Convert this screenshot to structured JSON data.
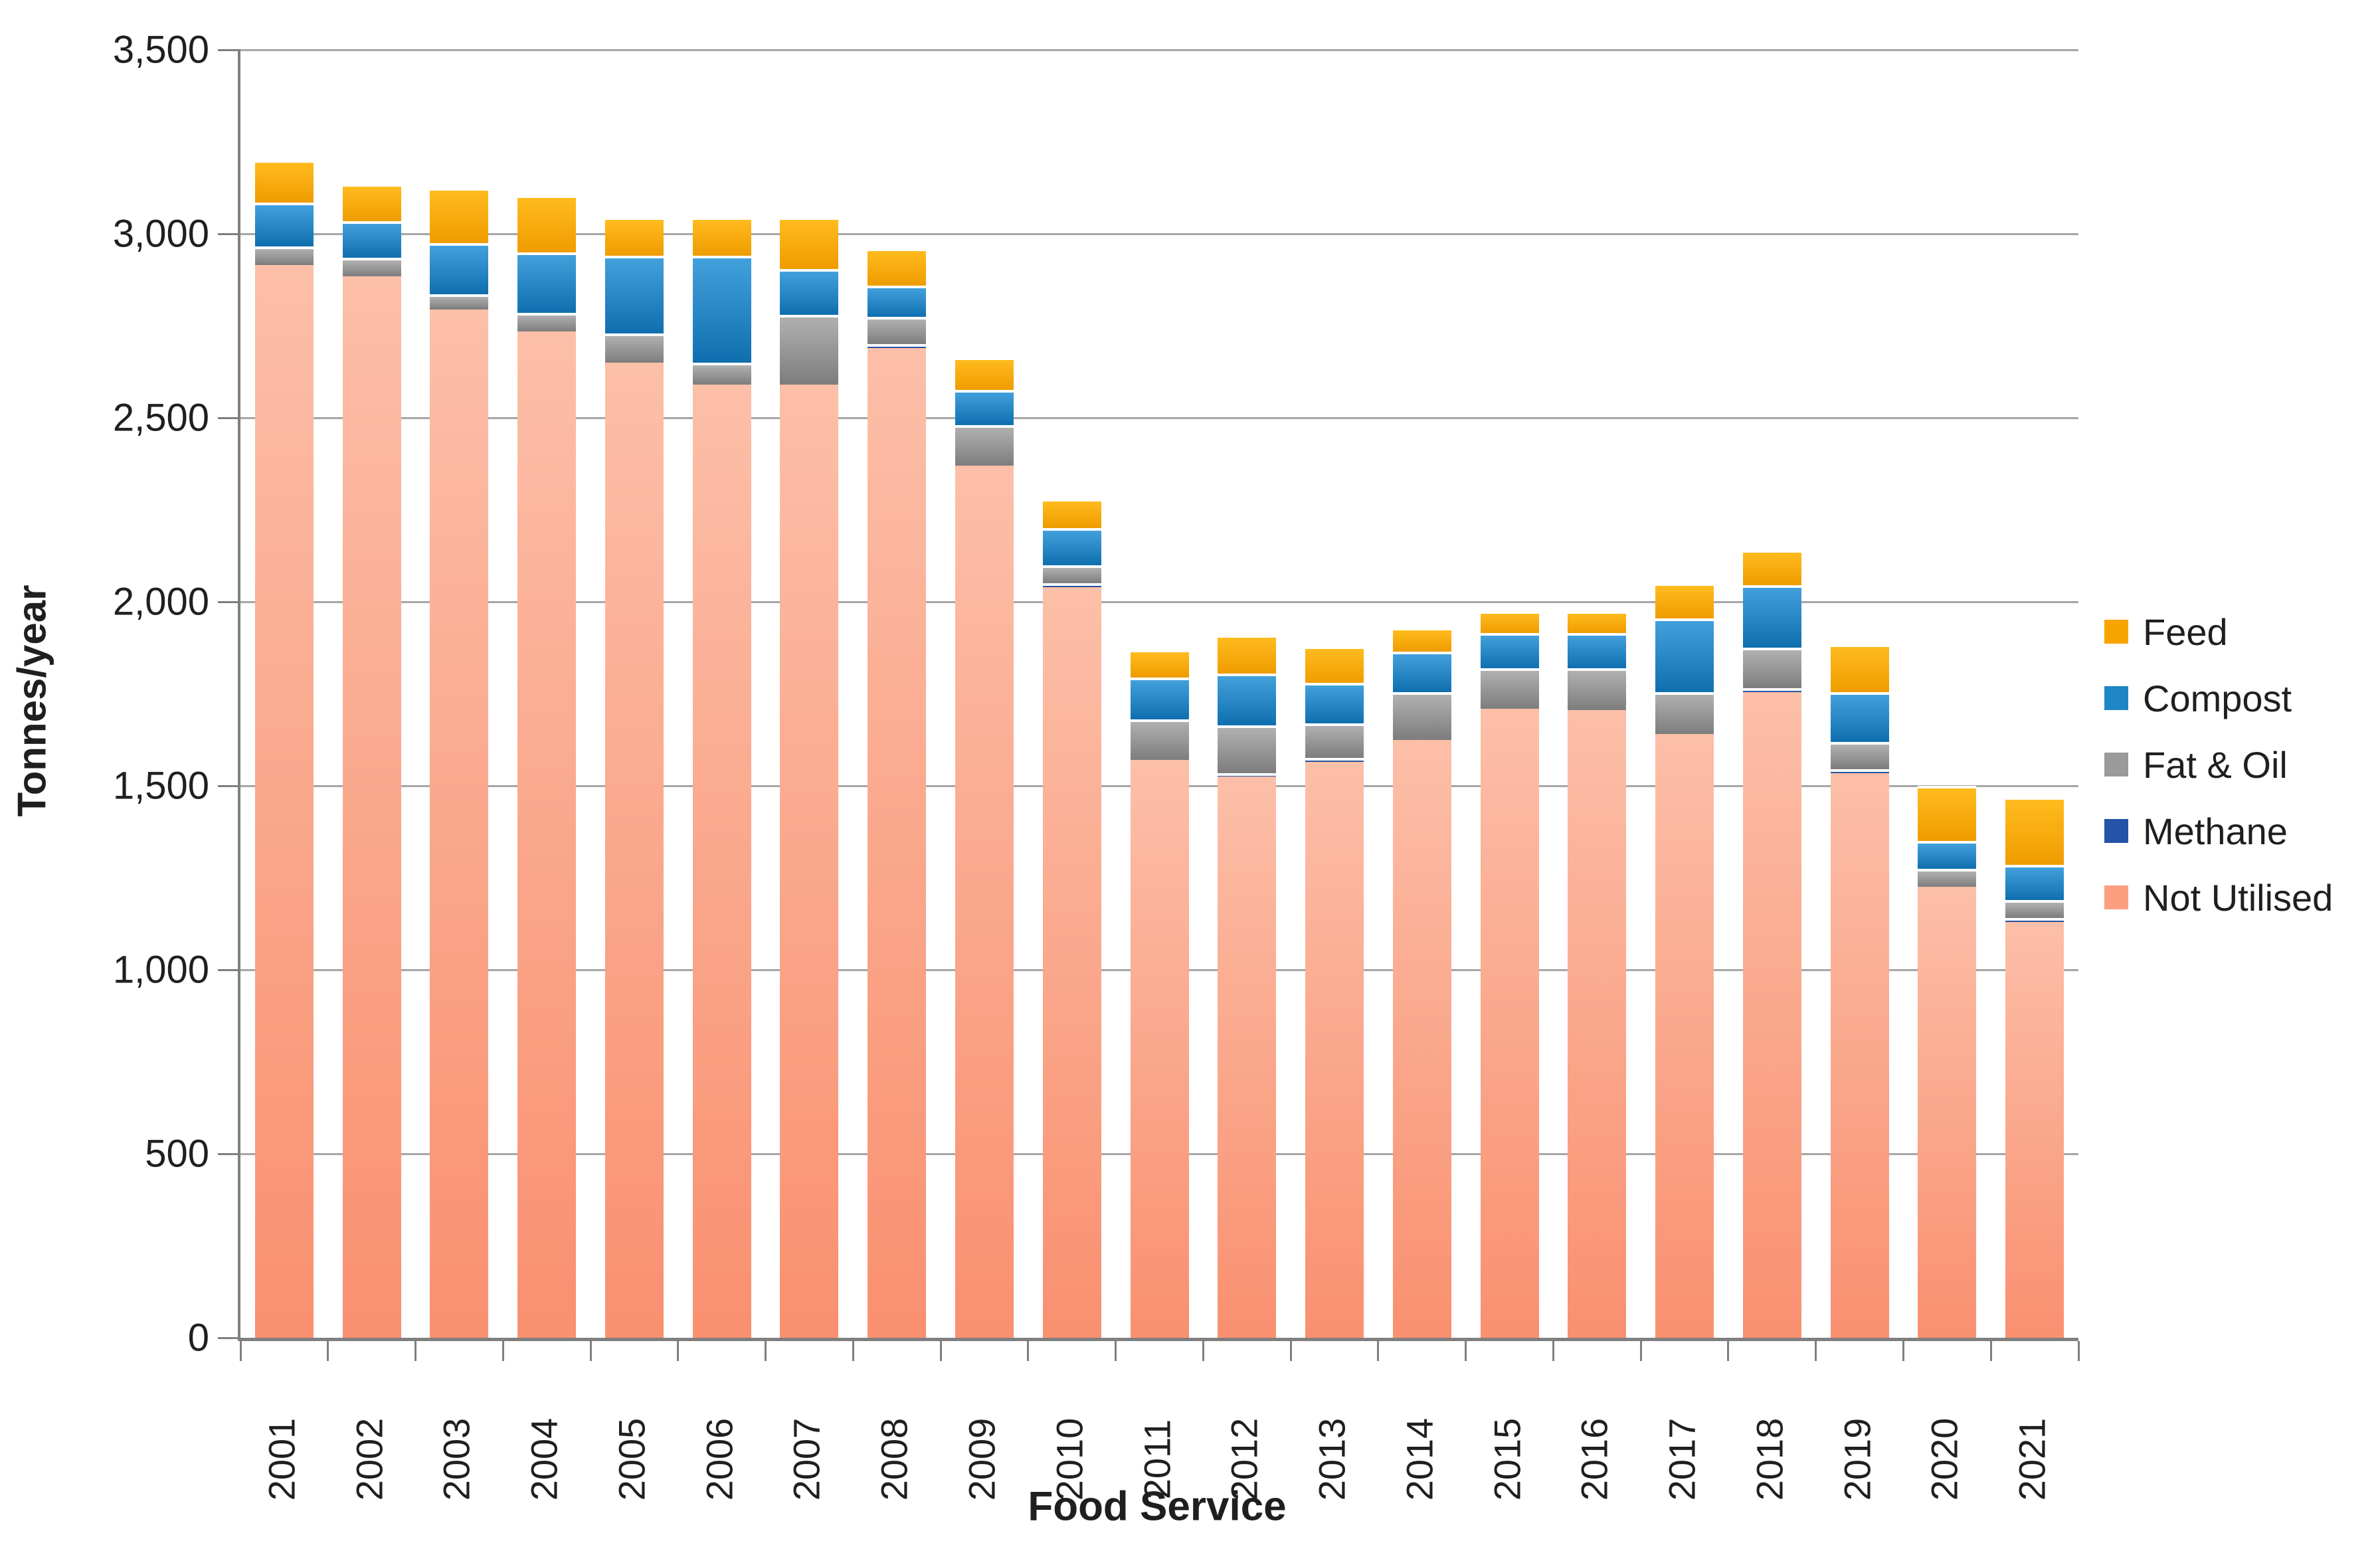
{
  "chart_data": {
    "type": "bar",
    "stacked": true,
    "x_axis_title": "Food Service",
    "y_axis_title": "Tonnes/year",
    "ylim": [
      0,
      3500
    ],
    "y_tick_step": 500,
    "y_tick_labels": [
      "0",
      "500",
      "1,000",
      "1,500",
      "2,000",
      "2,500",
      "3,000",
      "3,500"
    ],
    "grid": true,
    "legend_position": "right",
    "legend_order_top_to_bottom": [
      "Feed",
      "Compost",
      "Fat & Oil",
      "Methane",
      "Not Utilised"
    ],
    "categories": [
      "2001",
      "2002",
      "2003",
      "2004",
      "2005",
      "2006",
      "2007",
      "2008",
      "2009",
      "2010",
      "2011",
      "2012",
      "2013",
      "2014",
      "2015",
      "2016",
      "2017",
      "2018",
      "2019",
      "2020",
      "2021"
    ],
    "series": [
      {
        "name": "Not Utilised",
        "key": "not_utilised",
        "color": "#FB9F80",
        "values": [
          2915,
          2885,
          2795,
          2735,
          2650,
          2590,
          2590,
          2690,
          2370,
          2040,
          1570,
          1525,
          1565,
          1625,
          1710,
          1705,
          1640,
          1755,
          1535,
          1225,
          1130
        ]
      },
      {
        "name": "Methane",
        "key": "methane",
        "color": "#2453A8",
        "values": [
          0,
          0,
          0,
          0,
          0,
          0,
          0,
          10,
          0,
          10,
          0,
          10,
          10,
          0,
          0,
          0,
          0,
          10,
          10,
          0,
          10
        ]
      },
      {
        "name": "Fat & Oil",
        "key": "fat_oil",
        "color": "#9A9A9A",
        "values": [
          50,
          50,
          40,
          50,
          80,
          60,
          190,
          75,
          110,
          50,
          110,
          130,
          95,
          130,
          110,
          115,
          115,
          110,
          75,
          50,
          50
        ]
      },
      {
        "name": "Compost",
        "key": "compost",
        "color": "#1F86C6",
        "values": [
          120,
          100,
          140,
          165,
          210,
          290,
          125,
          85,
          95,
          100,
          115,
          140,
          110,
          110,
          95,
          95,
          200,
          170,
          135,
          75,
          95
        ]
      },
      {
        "name": "Feed",
        "key": "feed",
        "color": "#F7A400",
        "values": [
          115,
          100,
          150,
          155,
          105,
          105,
          140,
          100,
          90,
          80,
          75,
          105,
          100,
          65,
          60,
          60,
          95,
          95,
          130,
          150,
          185
        ]
      }
    ]
  }
}
